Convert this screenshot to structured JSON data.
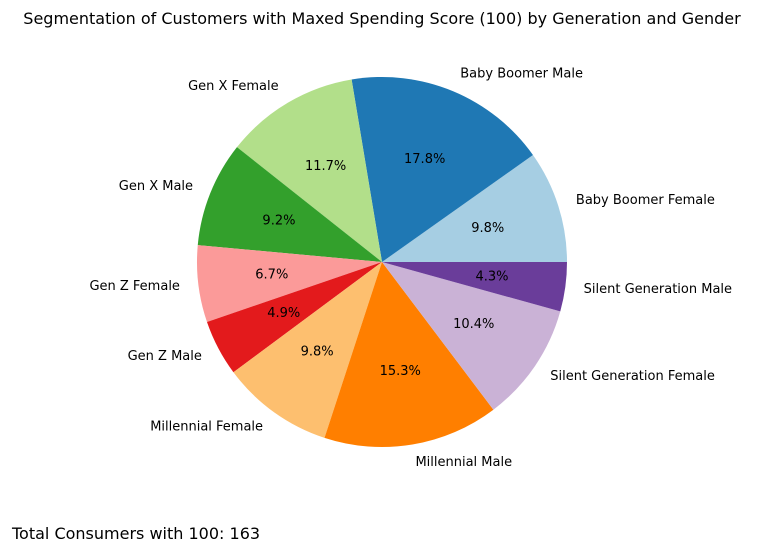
{
  "chart_data": {
    "type": "pie",
    "title": "Segmentation of Customers with Maxed Spending Score (100) by Generation and Gender",
    "slices": [
      {
        "label": "Baby Boomer Female",
        "value": 9.8,
        "pct_label": "9.8%",
        "color": "#a6cee3"
      },
      {
        "label": "Baby Boomer Male",
        "value": 17.8,
        "pct_label": "17.8%",
        "color": "#1f78b4"
      },
      {
        "label": "Gen X Female",
        "value": 11.7,
        "pct_label": "11.7%",
        "color": "#b2df8a"
      },
      {
        "label": "Gen X Male",
        "value": 9.2,
        "pct_label": "9.2%",
        "color": "#33a02c"
      },
      {
        "label": "Gen Z Female",
        "value": 6.7,
        "pct_label": "6.7%",
        "color": "#fb9a99"
      },
      {
        "label": "Gen Z Male",
        "value": 4.9,
        "pct_label": "4.9%",
        "color": "#e31a1c"
      },
      {
        "label": "Millennial Female",
        "value": 9.8,
        "pct_label": "9.8%",
        "color": "#fdbf6f"
      },
      {
        "label": "Millennial Male",
        "value": 15.3,
        "pct_label": "15.3%",
        "color": "#ff7f00"
      },
      {
        "label": "Silent Generation Female",
        "value": 10.4,
        "pct_label": "10.4%",
        "color": "#cab2d6"
      },
      {
        "label": "Silent Generation Male",
        "value": 4.3,
        "pct_label": "4.3%",
        "color": "#6a3d9a"
      }
    ]
  },
  "annotation": {
    "total_text": "Total Consumers with 100: 163"
  }
}
